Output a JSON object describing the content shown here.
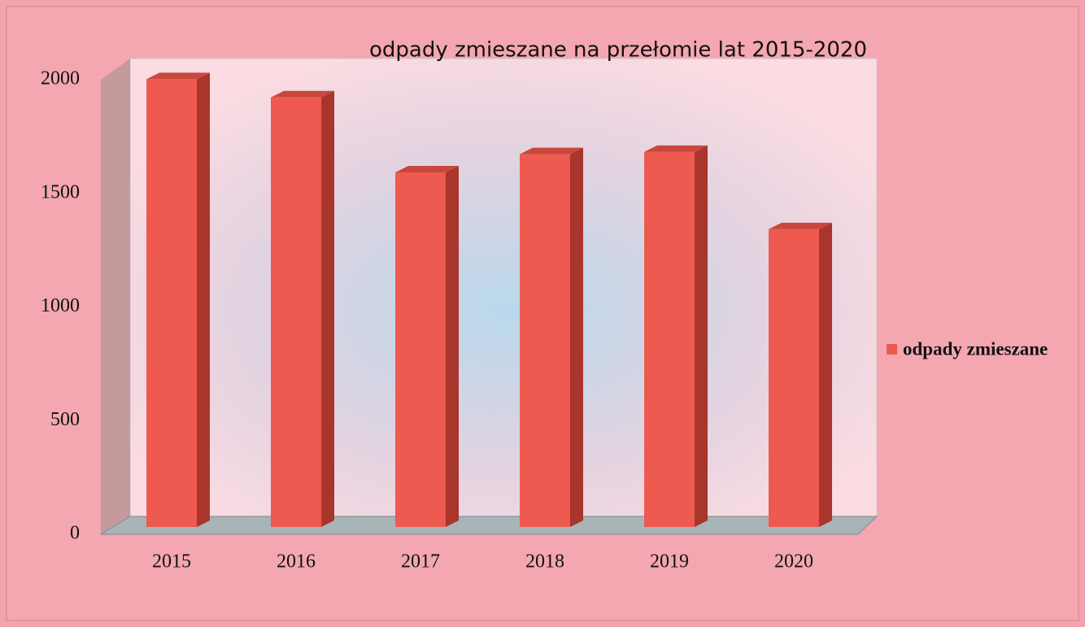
{
  "chart_data": {
    "type": "bar3d",
    "title": "odpady zmieszane na przełomie lat 2015-2020",
    "categories": [
      "2015",
      "2016",
      "2017",
      "2018",
      "2019",
      "2020"
    ],
    "series": [
      {
        "name": "odpady zmieszane",
        "color": "#ee5a50",
        "values": [
          1970,
          1890,
          1560,
          1640,
          1650,
          1310
        ]
      }
    ],
    "ylim": [
      0,
      2000
    ],
    "yticks": [
      0,
      500,
      1000,
      1500,
      2000
    ],
    "legend": "right"
  }
}
